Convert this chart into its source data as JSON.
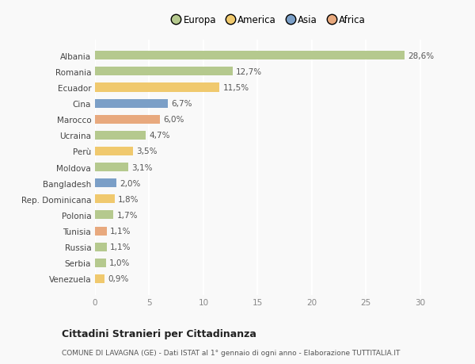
{
  "countries": [
    "Albania",
    "Romania",
    "Ecuador",
    "Cina",
    "Marocco",
    "Ucraina",
    "Perù",
    "Moldova",
    "Bangladesh",
    "Rep. Dominicana",
    "Polonia",
    "Tunisia",
    "Russia",
    "Serbia",
    "Venezuela"
  ],
  "values": [
    28.6,
    12.7,
    11.5,
    6.7,
    6.0,
    4.7,
    3.5,
    3.1,
    2.0,
    1.8,
    1.7,
    1.1,
    1.1,
    1.0,
    0.9
  ],
  "labels": [
    "28,6%",
    "12,7%",
    "11,5%",
    "6,7%",
    "6,0%",
    "4,7%",
    "3,5%",
    "3,1%",
    "2,0%",
    "1,8%",
    "1,7%",
    "1,1%",
    "1,1%",
    "1,0%",
    "0,9%"
  ],
  "colors": [
    "#b5c98e",
    "#b5c98e",
    "#f0c96e",
    "#7b9fc7",
    "#e8a97e",
    "#b5c98e",
    "#f0c96e",
    "#b5c98e",
    "#7b9fc7",
    "#f0c96e",
    "#b5c98e",
    "#e8a97e",
    "#b5c98e",
    "#b5c98e",
    "#f0c96e"
  ],
  "legend": [
    {
      "label": "Europa",
      "color": "#b5c98e"
    },
    {
      "label": "America",
      "color": "#f0c96e"
    },
    {
      "label": "Asia",
      "color": "#7b9fc7"
    },
    {
      "label": "Africa",
      "color": "#e8a97e"
    }
  ],
  "title": "Cittadini Stranieri per Cittadinanza",
  "subtitle": "COMUNE DI LAVAGNA (GE) - Dati ISTAT al 1° gennaio di ogni anno - Elaborazione TUTTITALIA.IT",
  "xlim": [
    0,
    32
  ],
  "xticks": [
    0,
    5,
    10,
    15,
    20,
    25,
    30
  ],
  "bg_color": "#f9f9f9",
  "grid_color": "#ffffff",
  "bar_height": 0.55,
  "label_fontsize": 7.5,
  "tick_fontsize": 7.5,
  "legend_fontsize": 8.5
}
